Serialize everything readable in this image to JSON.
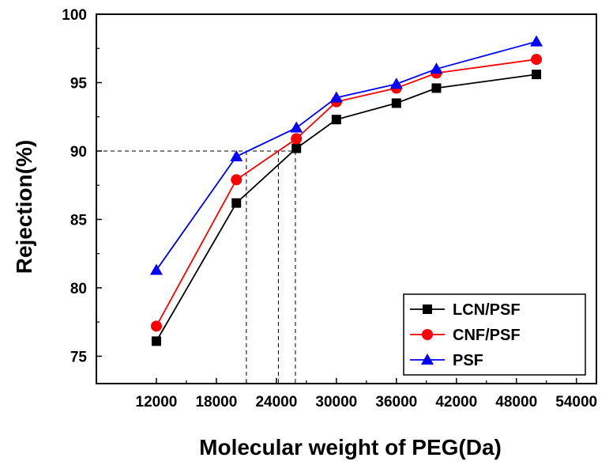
{
  "chart_data": {
    "type": "line",
    "title": "",
    "xlabel": "Molecular weight of PEG(Da)",
    "ylabel": "Rejection(%)",
    "xlim": [
      6000,
      56000
    ],
    "ylim": [
      73,
      100
    ],
    "xticks": [
      12000,
      18000,
      24000,
      30000,
      36000,
      42000,
      48000,
      54000
    ],
    "yticks": [
      75,
      80,
      85,
      90,
      95,
      100
    ],
    "x": [
      12000,
      20000,
      26000,
      30000,
      36000,
      40000,
      50000
    ],
    "series": [
      {
        "name": "LCN/PSF",
        "color": "#000000",
        "marker": "square",
        "values": [
          76.1,
          86.2,
          90.2,
          92.3,
          93.5,
          94.6,
          95.6
        ]
      },
      {
        "name": "CNF/PSF",
        "color": "#ff0000",
        "marker": "circle",
        "values": [
          77.2,
          87.9,
          90.9,
          93.6,
          94.6,
          95.7,
          96.7
        ]
      },
      {
        "name": "PSF",
        "color": "#0000ff",
        "marker": "triangle",
        "values": [
          81.3,
          89.6,
          91.7,
          93.9,
          94.9,
          96.0,
          98.0
        ]
      }
    ],
    "reference_lines": {
      "y": 90,
      "x": [
        21000,
        24200,
        25900
      ]
    },
    "legend_position": "bottom-right",
    "grid": false
  }
}
